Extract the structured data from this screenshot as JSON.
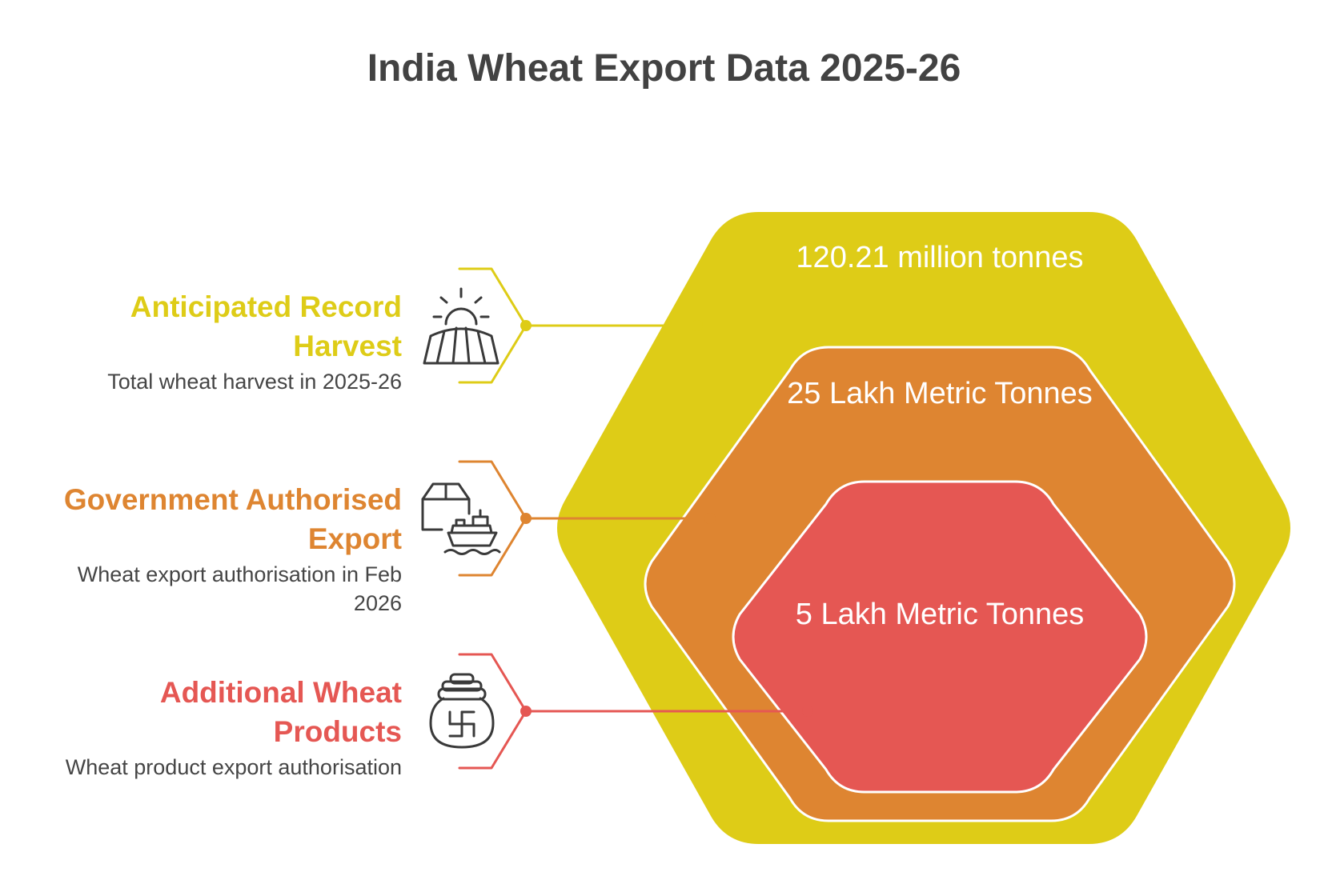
{
  "title": "India Wheat Export Data 2025-26",
  "colors": {
    "yellow": "#DECC17",
    "orange": "#DE8531",
    "red": "#E55753",
    "text_dark": "#424242",
    "icon_stroke": "#3A3A3A"
  },
  "items": [
    {
      "heading": "Anticipated Record Harvest",
      "description": "Total wheat harvest in 2025-26",
      "icon": "sunrise-field-icon",
      "color": "#DECC17"
    },
    {
      "heading": "Government Authorised Export",
      "description": "Wheat export authorisation in Feb 2026",
      "icon": "cargo-ship-icon",
      "color": "#DE8531"
    },
    {
      "heading": "Additional Wheat Products",
      "description": "Wheat product export authorisation",
      "icon": "grain-pot-icon",
      "color": "#E55753"
    }
  ],
  "layers": [
    {
      "label": "120.21 million tonnes",
      "color": "#DECC17"
    },
    {
      "label": "25 Lakh Metric Tonnes",
      "color": "#DE8531"
    },
    {
      "label": "5 Lakh Metric Tonnes",
      "color": "#E55753"
    }
  ]
}
